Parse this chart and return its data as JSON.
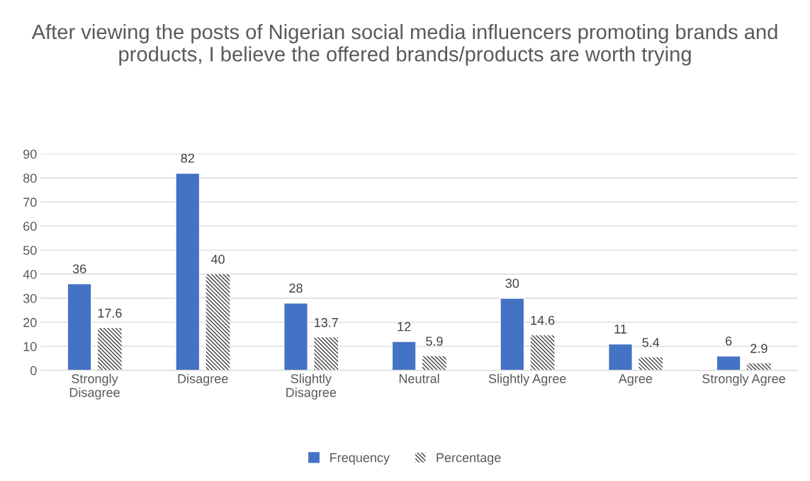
{
  "chart_data": {
    "type": "bar",
    "title": "After viewing the posts of Nigerian social media influencers promoting brands and products, I believe the offered brands/products are worth trying",
    "categories": [
      "Strongly\nDisagree",
      "Disagree",
      "Slightly\nDisagree",
      "Neutral",
      "Slightly Agree",
      "Agree",
      "Strongly Agree"
    ],
    "series": [
      {
        "name": "Frequency",
        "color": "#4472c4",
        "values": [
          36,
          82,
          28,
          12,
          30,
          11,
          6
        ]
      },
      {
        "name": "Percentage",
        "color": "#404040",
        "values": [
          17.6,
          40,
          13.7,
          5.9,
          14.6,
          5.4,
          2.9
        ]
      }
    ],
    "ylim": [
      0,
      90
    ],
    "yticks": [
      0,
      10,
      20,
      30,
      40,
      50,
      60,
      70,
      80,
      90
    ],
    "grid": "y",
    "legend": "bottom",
    "data_labels": true
  }
}
